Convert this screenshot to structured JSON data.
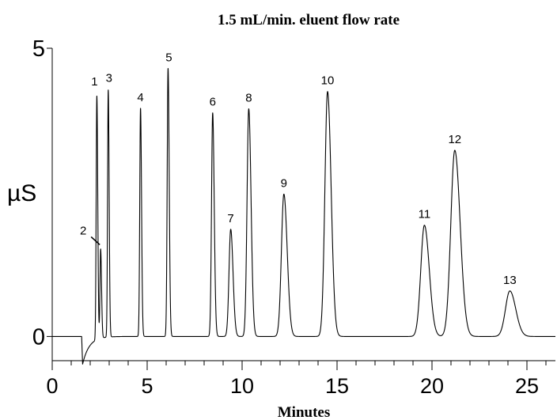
{
  "chart_data": {
    "type": "line",
    "title": "1.5 mL/min. eluent flow rate",
    "xlabel": "Minutes",
    "ylabel": "µS",
    "xlim": [
      0,
      26.5
    ],
    "ylim": [
      -0.42,
      5
    ],
    "x_ticks": [
      0,
      5,
      10,
      15,
      20,
      25
    ],
    "x_tick_labels": [
      "0",
      "5",
      "10",
      "15",
      "20",
      "25"
    ],
    "y_ticks": [
      0,
      5
    ],
    "y_tick_labels": [
      "0",
      "5"
    ],
    "grid": false,
    "baseline": {
      "start": 0,
      "end": 26.5
    },
    "injection_dip": {
      "x": 1.6,
      "depth": -0.48,
      "recovery_width": 0.35
    },
    "peaks": [
      {
        "label": "1",
        "x": 2.35,
        "height": 4.23,
        "width": 0.035
      },
      {
        "label": "2",
        "x": 2.55,
        "height": 1.55,
        "width": 0.035
      },
      {
        "label": "3",
        "x": 2.95,
        "height": 4.29,
        "width": 0.035
      },
      {
        "label": "4",
        "x": 4.65,
        "height": 3.96,
        "width": 0.04
      },
      {
        "label": "5",
        "x": 6.1,
        "height": 4.65,
        "width": 0.045
      },
      {
        "label": "6",
        "x": 8.45,
        "height": 3.88,
        "width": 0.06
      },
      {
        "label": "7",
        "x": 9.4,
        "height": 1.86,
        "width": 0.09
      },
      {
        "label": "8",
        "x": 10.35,
        "height": 3.95,
        "width": 0.09
      },
      {
        "label": "9",
        "x": 12.2,
        "height": 2.47,
        "width": 0.13
      },
      {
        "label": "10",
        "x": 14.5,
        "height": 4.25,
        "width": 0.14
      },
      {
        "label": "11",
        "x": 19.6,
        "height": 1.93,
        "width": 0.19
      },
      {
        "label": "12",
        "x": 21.2,
        "height": 3.23,
        "width": 0.21
      },
      {
        "label": "13",
        "x": 24.1,
        "height": 0.79,
        "width": 0.23
      }
    ]
  }
}
